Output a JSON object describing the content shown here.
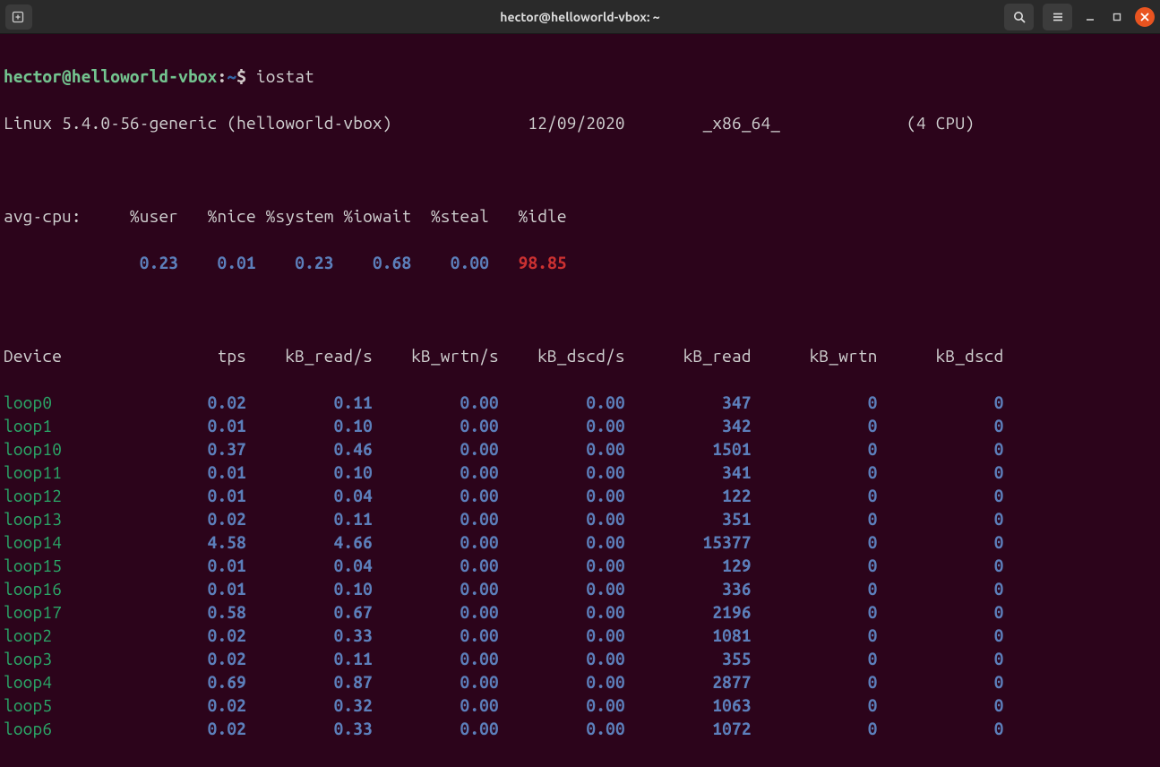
{
  "window": {
    "title": "hector@helloworld-vbox: ~"
  },
  "prompt": {
    "user_host": "hector@helloworld-vbox",
    "separator": ":",
    "path": "~",
    "dollar": "$",
    "command": "iostat"
  },
  "sysline": {
    "kernel": "Linux 5.4.0-56-generic (helloworld-vbox)",
    "date": "12/09/2020",
    "arch": "_x86_64_",
    "cpu": "(4 CPU)"
  },
  "avg_cpu": {
    "label": "avg-cpu:",
    "headers": [
      "%user",
      "%nice",
      "%system",
      "%iowait",
      "%steal",
      "%idle"
    ],
    "values": [
      "0.23",
      "0.01",
      "0.23",
      "0.68",
      "0.00",
      "98.85"
    ]
  },
  "device_header": [
    "Device",
    "tps",
    "kB_read/s",
    "kB_wrtn/s",
    "kB_dscd/s",
    "kB_read",
    "kB_wrtn",
    "kB_dscd"
  ],
  "devices": [
    [
      "loop0",
      "0.02",
      "0.11",
      "0.00",
      "0.00",
      "347",
      "0",
      "0"
    ],
    [
      "loop1",
      "0.01",
      "0.10",
      "0.00",
      "0.00",
      "342",
      "0",
      "0"
    ],
    [
      "loop10",
      "0.37",
      "0.46",
      "0.00",
      "0.00",
      "1501",
      "0",
      "0"
    ],
    [
      "loop11",
      "0.01",
      "0.10",
      "0.00",
      "0.00",
      "341",
      "0",
      "0"
    ],
    [
      "loop12",
      "0.01",
      "0.04",
      "0.00",
      "0.00",
      "122",
      "0",
      "0"
    ],
    [
      "loop13",
      "0.02",
      "0.11",
      "0.00",
      "0.00",
      "351",
      "0",
      "0"
    ],
    [
      "loop14",
      "4.58",
      "4.66",
      "0.00",
      "0.00",
      "15377",
      "0",
      "0"
    ],
    [
      "loop15",
      "0.01",
      "0.04",
      "0.00",
      "0.00",
      "129",
      "0",
      "0"
    ],
    [
      "loop16",
      "0.01",
      "0.10",
      "0.00",
      "0.00",
      "336",
      "0",
      "0"
    ],
    [
      "loop17",
      "0.58",
      "0.67",
      "0.00",
      "0.00",
      "2196",
      "0",
      "0"
    ],
    [
      "loop2",
      "0.02",
      "0.33",
      "0.00",
      "0.00",
      "1081",
      "0",
      "0"
    ],
    [
      "loop3",
      "0.02",
      "0.11",
      "0.00",
      "0.00",
      "355",
      "0",
      "0"
    ],
    [
      "loop4",
      "0.69",
      "0.87",
      "0.00",
      "0.00",
      "2877",
      "0",
      "0"
    ],
    [
      "loop5",
      "0.02",
      "0.32",
      "0.00",
      "0.00",
      "1063",
      "0",
      "0"
    ],
    [
      "loop6",
      "0.02",
      "0.33",
      "0.00",
      "0.00",
      "1072",
      "0",
      "0"
    ]
  ],
  "colors": {
    "background": "#2c041b",
    "titlebar": "#2a2a2a",
    "text": "#d0c8c8",
    "prompt_green": "#4e9a06",
    "prompt_blue": "#3465a4",
    "number_blue": "#5c7fbb",
    "device_green": "#2aa868",
    "idle_red": "#cc3131",
    "close_orange": "#e95420"
  },
  "widths": {
    "device": 12,
    "tps": 13,
    "kb_read_s": 13,
    "kb_wrtn_s": 13,
    "kb_dscd_s": 13,
    "kb_read": 13,
    "kb_wrtn": 13,
    "kb_dscd": 13
  }
}
